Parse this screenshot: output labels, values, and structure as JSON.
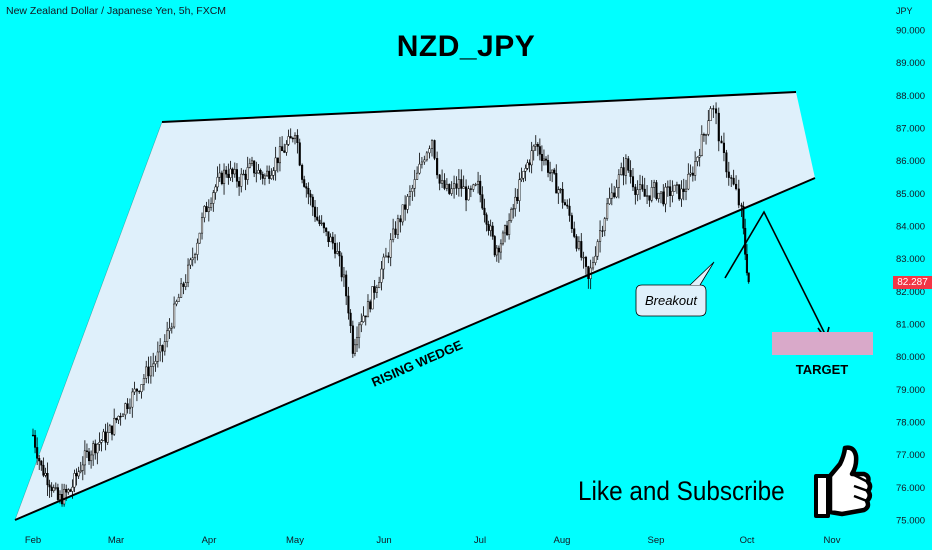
{
  "symbol_line": "New Zealand Dollar / Japanese Yen, 5h, FXCM",
  "title": "NZD_JPY",
  "cta_text": "Like and Subscribe",
  "thumbs_icon": "thumbs-up-icon",
  "colors": {
    "background": "#00ffff",
    "wedge_fill": "#dff0fb",
    "target_box": "#d9a9c9",
    "candle": "#000000",
    "price_tag": "#f23645"
  },
  "chart_data": {
    "type": "candlestick",
    "instrument": "NZDJPY",
    "timeframe": "5h",
    "y_axis": {
      "unit_label": "JPY",
      "ticks": [
        "90.000",
        "89.000",
        "88.000",
        "87.000",
        "86.000",
        "85.000",
        "84.000",
        "83.000",
        "82.000",
        "81.000",
        "80.000",
        "79.000",
        "78.000",
        "77.000",
        "76.000",
        "75.000"
      ],
      "range": [
        74.6,
        90.6
      ]
    },
    "x_axis": {
      "ticks": [
        "Feb",
        "Mar",
        "Apr",
        "May",
        "Jun",
        "Jul",
        "Aug",
        "Sep",
        "Oct",
        "Nov"
      ]
    },
    "last_price": "82.287",
    "price_path": [
      [
        0,
        77.6
      ],
      [
        0.1,
        76.6
      ],
      [
        0.2,
        76.2
      ],
      [
        0.3,
        75.6
      ],
      [
        0.45,
        75.9
      ],
      [
        0.6,
        76.8
      ],
      [
        0.75,
        77.3
      ],
      [
        0.9,
        77.6
      ],
      [
        1.05,
        78.3
      ],
      [
        1.2,
        78.9
      ],
      [
        1.35,
        79.6
      ],
      [
        1.5,
        80.2
      ],
      [
        1.65,
        81.6
      ],
      [
        1.8,
        82.8
      ],
      [
        1.95,
        84.4
      ],
      [
        2.05,
        85.1
      ],
      [
        2.2,
        85.7
      ],
      [
        2.35,
        85.4
      ],
      [
        2.5,
        85.8
      ],
      [
        2.65,
        85.5
      ],
      [
        2.8,
        86.1
      ],
      [
        2.95,
        86.6
      ],
      [
        3.0,
        87.0
      ],
      [
        3.08,
        85.6
      ],
      [
        3.15,
        85.0
      ],
      [
        3.25,
        84.2
      ],
      [
        3.35,
        83.7
      ],
      [
        3.45,
        83.4
      ],
      [
        3.55,
        82.3
      ],
      [
        3.6,
        81.5
      ],
      [
        3.65,
        80.3
      ],
      [
        3.72,
        81.1
      ],
      [
        3.82,
        81.5
      ],
      [
        3.92,
        82.3
      ],
      [
        4.02,
        83.0
      ],
      [
        4.12,
        83.9
      ],
      [
        4.22,
        84.6
      ],
      [
        4.32,
        85.3
      ],
      [
        4.42,
        86.2
      ],
      [
        4.5,
        86.7
      ],
      [
        4.58,
        85.3
      ],
      [
        4.68,
        85.0
      ],
      [
        4.78,
        85.3
      ],
      [
        4.88,
        84.9
      ],
      [
        4.98,
        85.2
      ],
      [
        5.08,
        84.3
      ],
      [
        5.18,
        83.3
      ],
      [
        5.28,
        83.6
      ],
      [
        5.38,
        84.3
      ],
      [
        5.48,
        85.2
      ],
      [
        5.58,
        85.9
      ],
      [
        5.68,
        86.5
      ],
      [
        5.78,
        86.1
      ],
      [
        5.88,
        85.5
      ],
      [
        5.98,
        85.0
      ],
      [
        6.08,
        84.3
      ],
      [
        6.18,
        83.3
      ],
      [
        6.28,
        82.3
      ],
      [
        6.38,
        83.6
      ],
      [
        6.48,
        84.6
      ],
      [
        6.58,
        85.3
      ],
      [
        6.68,
        85.9
      ],
      [
        6.78,
        85.2
      ],
      [
        6.88,
        84.9
      ],
      [
        6.98,
        85.1
      ],
      [
        7.08,
        84.9
      ],
      [
        7.18,
        85.1
      ],
      [
        7.28,
        85.0
      ],
      [
        7.38,
        85.5
      ],
      [
        7.48,
        86.4
      ],
      [
        7.55,
        87.0
      ],
      [
        7.6,
        87.7
      ],
      [
        7.66,
        87.3
      ],
      [
        7.72,
        86.3
      ],
      [
        7.8,
        85.6
      ],
      [
        7.88,
        85.0
      ],
      [
        7.94,
        84.4
      ],
      [
        7.98,
        83.2
      ],
      [
        8.02,
        82.3
      ]
    ],
    "annotations": [
      {
        "type": "trendline",
        "label": "",
        "points": [
          [
            1.5,
            87.2
          ],
          [
            8.8,
            88.1
          ]
        ]
      },
      {
        "type": "trendline",
        "label": "RISING WEDGE",
        "points": [
          [
            0.1,
            75.3
          ],
          [
            9.1,
            85.5
          ]
        ]
      },
      {
        "type": "callout",
        "label": "Breakout"
      },
      {
        "type": "projection",
        "points": [
          [
            8.05,
            82.5
          ],
          [
            8.4,
            84.5
          ],
          [
            9.0,
            80.6
          ]
        ]
      },
      {
        "type": "box",
        "label": "TARGET",
        "y_range": [
          80.1,
          80.8
        ],
        "x_range": [
          8.6,
          9.7
        ]
      }
    ]
  }
}
